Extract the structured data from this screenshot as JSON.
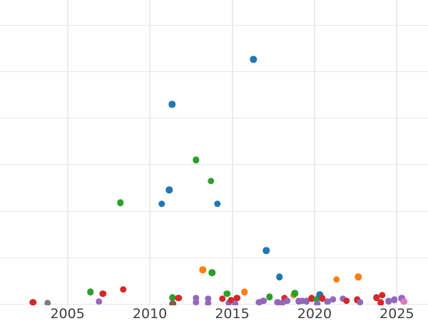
{
  "figure": {
    "background_color": "#ffffff",
    "gridline_color": "#e6e6e6",
    "tick_label_color": "#3d3d3d",
    "title": "",
    "legend_visible": false,
    "y_tick_labels_visible": false
  },
  "chart_data": {
    "type": "scatter",
    "title": "",
    "xlabel": "",
    "ylabel": "",
    "grid": true,
    "legend": false,
    "x_ticks": [
      2005,
      2010,
      2015,
      2020,
      2025
    ],
    "x_tick_labels": [
      "2005",
      "2010",
      "2015",
      "2020",
      "2025"
    ],
    "x_range": [
      2000.9,
      2026.89
    ],
    "y_range": [
      -0.018,
      6.536
    ],
    "y_gridlines": [
      0,
      1,
      2,
      3,
      4,
      5,
      6
    ],
    "y_units_note": "y-axis tick labels are not visible in the screenshot; y values are expressed in gridline units (0 = bottom gridline, 1 unit = one gridline spacing)",
    "marker_size_px": 9.5,
    "series_colors": {
      "blue": "#1f77b4",
      "orange": "#ff7f0e",
      "green": "#2ca02c",
      "red": "#d62728",
      "purple": "#9467bd",
      "brown": "#8c564b",
      "pink": "#e377c2",
      "gray": "#7f7f7f"
    },
    "points": [
      {
        "x": 2002.9,
        "y": 0.05,
        "c": "red"
      },
      {
        "x": 2003.79,
        "y": 0.03,
        "c": "gray"
      },
      {
        "x": 2006.4,
        "y": 0.27,
        "c": "green"
      },
      {
        "x": 2006.9,
        "y": 0.06,
        "c": "purple"
      },
      {
        "x": 2007.14,
        "y": 0.23,
        "c": "red"
      },
      {
        "x": 2008.21,
        "y": 2.18,
        "c": "green"
      },
      {
        "x": 2008.39,
        "y": 0.32,
        "c": "red"
      },
      {
        "x": 2010.73,
        "y": 2.16,
        "c": "blue"
      },
      {
        "x": 2011.17,
        "y": 2.46,
        "c": "blue"
      },
      {
        "x": 2011.34,
        "y": 4.3,
        "c": "blue"
      },
      {
        "x": 2011.37,
        "y": 0.15,
        "c": "green"
      },
      {
        "x": 2011.4,
        "y": 0.02,
        "c": "brown"
      },
      {
        "x": 2011.74,
        "y": 0.14,
        "c": "red"
      },
      {
        "x": 2012.81,
        "y": 3.1,
        "c": "green"
      },
      {
        "x": 2012.81,
        "y": 0.14,
        "c": "purple"
      },
      {
        "x": 2012.81,
        "y": 0.05,
        "c": "purple"
      },
      {
        "x": 2013.21,
        "y": 0.74,
        "c": "orange"
      },
      {
        "x": 2013.53,
        "y": 0.12,
        "c": "purple"
      },
      {
        "x": 2013.53,
        "y": 0.03,
        "c": "purple"
      },
      {
        "x": 2013.71,
        "y": 2.65,
        "c": "green"
      },
      {
        "x": 2013.78,
        "y": 0.68,
        "c": "green"
      },
      {
        "x": 2014.11,
        "y": 2.16,
        "c": "blue"
      },
      {
        "x": 2014.4,
        "y": 0.12,
        "c": "red"
      },
      {
        "x": 2014.69,
        "y": 0.23,
        "c": "green"
      },
      {
        "x": 2014.8,
        "y": 0.03,
        "c": "purple"
      },
      {
        "x": 2014.93,
        "y": 0.09,
        "c": "red"
      },
      {
        "x": 2015.19,
        "y": 0.02,
        "c": "purple"
      },
      {
        "x": 2015.29,
        "y": 0.14,
        "c": "red"
      },
      {
        "x": 2015.74,
        "y": 0.27,
        "c": "orange"
      },
      {
        "x": 2016.29,
        "y": 5.26,
        "c": "blue"
      },
      {
        "x": 2016.64,
        "y": 0.05,
        "c": "purple"
      },
      {
        "x": 2016.9,
        "y": 0.08,
        "c": "purple"
      },
      {
        "x": 2017.07,
        "y": 1.16,
        "c": "blue"
      },
      {
        "x": 2017.26,
        "y": 0.16,
        "c": "green"
      },
      {
        "x": 2017.77,
        "y": 0.05,
        "c": "purple"
      },
      {
        "x": 2017.86,
        "y": 0.59,
        "c": "blue"
      },
      {
        "x": 2018.05,
        "y": 0.03,
        "c": "purple"
      },
      {
        "x": 2018.18,
        "y": 0.14,
        "c": "red"
      },
      {
        "x": 2018.33,
        "y": 0.08,
        "c": "purple"
      },
      {
        "x": 2018.73,
        "y": 0.2,
        "c": "orange"
      },
      {
        "x": 2018.8,
        "y": 0.24,
        "c": "green"
      },
      {
        "x": 2019.03,
        "y": 0.07,
        "c": "purple"
      },
      {
        "x": 2019.26,
        "y": 0.08,
        "c": "purple"
      },
      {
        "x": 2019.52,
        "y": 0.07,
        "c": "purple"
      },
      {
        "x": 2019.81,
        "y": 0.13,
        "c": "red"
      },
      {
        "x": 2020.13,
        "y": 0.11,
        "c": "green"
      },
      {
        "x": 2020.17,
        "y": 0.02,
        "c": "purple"
      },
      {
        "x": 2020.32,
        "y": 0.21,
        "c": "blue"
      },
      {
        "x": 2020.46,
        "y": 0.13,
        "c": "red"
      },
      {
        "x": 2020.79,
        "y": 0.06,
        "c": "purple"
      },
      {
        "x": 2021.11,
        "y": 0.11,
        "c": "purple"
      },
      {
        "x": 2021.33,
        "y": 0.54,
        "c": "orange"
      },
      {
        "x": 2021.72,
        "y": 0.12,
        "c": "purple"
      },
      {
        "x": 2021.95,
        "y": 0.08,
        "c": "red"
      },
      {
        "x": 2022.58,
        "y": 0.1,
        "c": "red"
      },
      {
        "x": 2022.65,
        "y": 0.59,
        "c": "orange"
      },
      {
        "x": 2022.77,
        "y": 0.05,
        "c": "purple"
      },
      {
        "x": 2023.77,
        "y": 0.15,
        "c": "red"
      },
      {
        "x": 2024.03,
        "y": 0.04,
        "c": "red"
      },
      {
        "x": 2024.11,
        "y": 0.2,
        "c": "red"
      },
      {
        "x": 2024.5,
        "y": 0.07,
        "c": "purple"
      },
      {
        "x": 2024.85,
        "y": 0.1,
        "c": "purple"
      },
      {
        "x": 2025.3,
        "y": 0.13,
        "c": "purple"
      },
      {
        "x": 2025.43,
        "y": 0.06,
        "c": "pink"
      }
    ]
  }
}
